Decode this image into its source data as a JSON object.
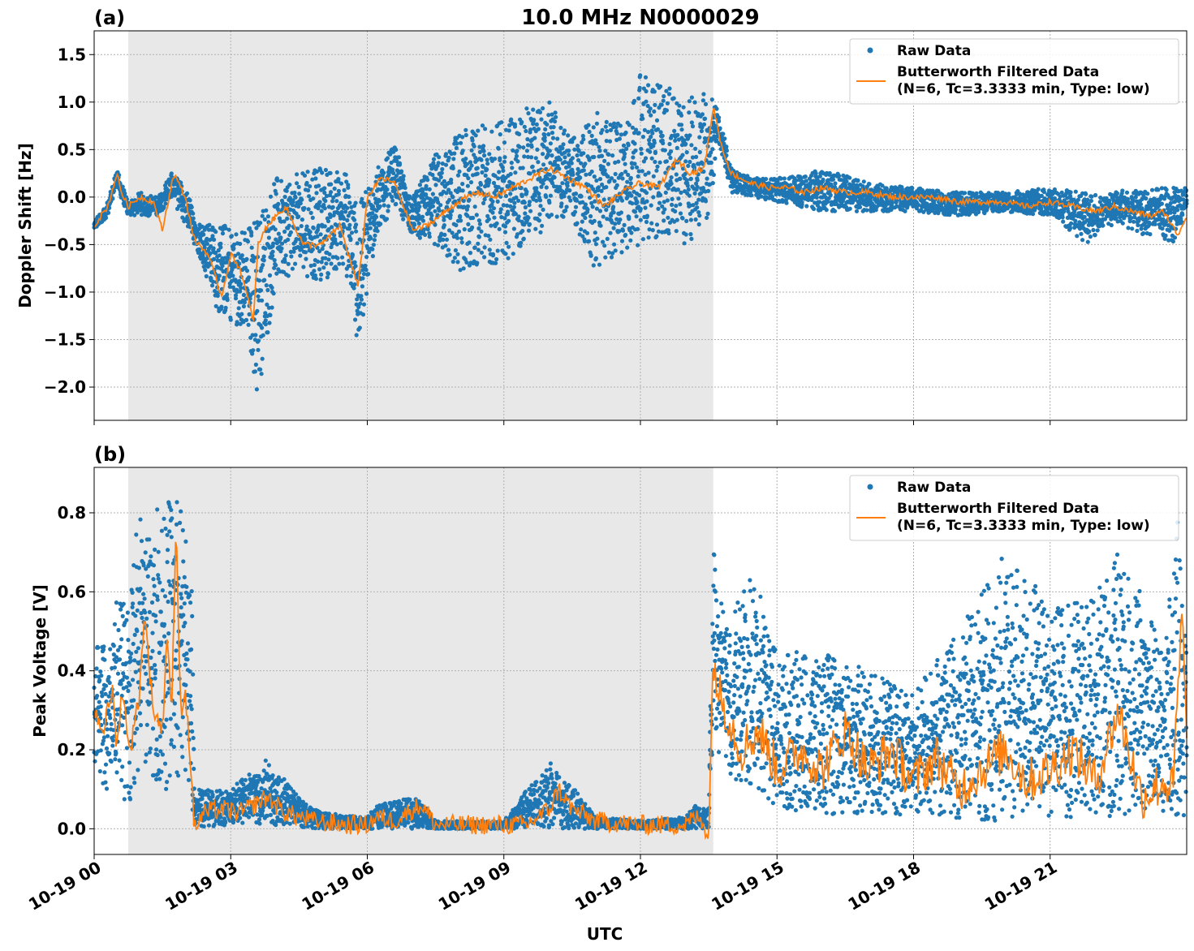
{
  "chart_data": [
    {
      "type": "scatter",
      "panel_label": "(a)",
      "title": "10.0 MHz N0000029",
      "xlabel": "",
      "ylabel": "Doppler Shift [Hz]",
      "xlim_hours": [
        0,
        24
      ],
      "ylim": [
        -2.35,
        1.75
      ],
      "yticks": [
        1.5,
        1.0,
        0.5,
        0.0,
        -0.5,
        -1.0,
        -1.5,
        -2.0
      ],
      "ytick_labels": [
        "1.5",
        "1.0",
        "0.5",
        "0.0",
        "−0.5",
        "−1.0",
        "−1.5",
        "−2.0"
      ],
      "grid": true,
      "legend_placement": "top-right",
      "shaded_span_hours": [
        0.75,
        13.6
      ],
      "shade_color": "#e8e8e8",
      "series": [
        {
          "name": "Raw Data",
          "kind": "points",
          "color": "#1f77b4",
          "envelope": {
            "x": [
              0,
              0.3,
              0.5,
              0.75,
              1.0,
              1.4,
              1.7,
              2.0,
              2.3,
              2.7,
              3.0,
              3.3,
              3.6,
              4.0,
              4.5,
              5.0,
              5.5,
              5.8,
              6.2,
              6.6,
              7.0,
              7.5,
              8.0,
              8.5,
              9.0,
              9.5,
              10.0,
              10.5,
              11.0,
              11.5,
              12.0,
              12.5,
              13.0,
              13.5,
              13.7,
              14.0,
              14.5,
              15.0,
              15.5,
              16.0,
              17.0,
              18.0,
              19.0,
              20.0,
              21.0,
              21.8,
              22.2,
              22.6,
              23.0,
              23.4,
              23.7,
              24.0
            ],
            "upper": [
              -0.25,
              -0.05,
              0.3,
              -0.05,
              0.05,
              0.0,
              0.28,
              0.1,
              -0.25,
              -0.3,
              -0.25,
              -0.35,
              -0.15,
              0.2,
              0.25,
              0.35,
              0.3,
              -0.1,
              0.3,
              0.55,
              0.0,
              0.45,
              0.7,
              0.75,
              0.8,
              0.95,
              1.0,
              0.6,
              0.9,
              0.8,
              1.3,
              1.2,
              1.0,
              1.2,
              0.95,
              0.3,
              0.2,
              0.2,
              0.22,
              0.3,
              0.15,
              0.1,
              0.05,
              0.05,
              0.1,
              0.05,
              0.0,
              0.1,
              0.05,
              0.1,
              0.1,
              0.1
            ],
            "lower": [
              -0.35,
              -0.2,
              0.1,
              -0.2,
              -0.2,
              -0.2,
              0.0,
              -0.3,
              -0.6,
              -1.2,
              -1.3,
              -1.4,
              -2.1,
              -0.9,
              -0.8,
              -0.9,
              -0.7,
              -1.6,
              -0.4,
              -0.1,
              -0.4,
              -0.5,
              -0.8,
              -0.7,
              -0.7,
              -0.5,
              -0.3,
              -0.2,
              -0.8,
              -0.6,
              -0.5,
              -0.4,
              -0.5,
              -0.3,
              0.6,
              0.05,
              0.0,
              -0.05,
              -0.1,
              -0.15,
              -0.15,
              -0.15,
              -0.2,
              -0.15,
              -0.2,
              -0.5,
              -0.3,
              -0.3,
              -0.4,
              -0.4,
              -0.5,
              -0.2
            ]
          }
        },
        {
          "name": "Butterworth Filtered Data\n(N=6, Tc=3.3333 min, Type: low)",
          "name_lines": [
            "Butterworth Filtered Data",
            "(N=6, Tc=3.3333 min, Type: low)"
          ],
          "kind": "line",
          "color": "#ff7f0e",
          "x": [
            0,
            0.3,
            0.5,
            0.6,
            0.75,
            1.0,
            1.3,
            1.5,
            1.75,
            2.0,
            2.2,
            2.5,
            2.8,
            3.0,
            3.2,
            3.5,
            3.6,
            3.8,
            4.2,
            4.6,
            5.0,
            5.4,
            5.8,
            6.0,
            6.3,
            6.6,
            7.0,
            7.3,
            7.6,
            8.0,
            8.4,
            8.8,
            9.2,
            9.6,
            10.0,
            10.4,
            10.8,
            11.2,
            11.6,
            12.0,
            12.4,
            12.8,
            13.1,
            13.4,
            13.6,
            13.8,
            14.0,
            14.4,
            14.8,
            15.2,
            15.6,
            16.0,
            16.5,
            17.0,
            17.5,
            18.0,
            18.5,
            19.0,
            19.5,
            20.0,
            20.5,
            21.0,
            21.5,
            22.0,
            22.4,
            22.8,
            23.2,
            23.5,
            23.8,
            24.0
          ],
          "y": [
            -0.3,
            -0.1,
            0.25,
            0.05,
            -0.1,
            0.0,
            -0.05,
            -0.35,
            0.25,
            0.0,
            -0.45,
            -0.6,
            -1.05,
            -0.6,
            -0.75,
            -1.3,
            -0.5,
            -0.3,
            -0.1,
            -0.5,
            -0.5,
            -0.3,
            -0.95,
            0.0,
            0.2,
            0.15,
            -0.35,
            -0.3,
            -0.2,
            -0.05,
            0.05,
            0.0,
            0.1,
            0.2,
            0.3,
            0.2,
            0.1,
            -0.1,
            0.05,
            0.15,
            0.1,
            0.4,
            0.25,
            0.3,
            0.95,
            0.5,
            0.25,
            0.15,
            0.1,
            0.1,
            0.05,
            0.1,
            0.05,
            0.05,
            0.0,
            0.0,
            0.0,
            -0.05,
            -0.05,
            -0.05,
            -0.1,
            -0.05,
            -0.1,
            -0.15,
            -0.1,
            -0.15,
            -0.2,
            -0.15,
            -0.4,
            -0.2
          ]
        }
      ]
    },
    {
      "type": "scatter",
      "panel_label": "(b)",
      "title": "",
      "xlabel": "UTC",
      "ylabel": "Peak Voltage [V]",
      "xlim_hours": [
        0,
        24
      ],
      "ylim": [
        -0.065,
        0.915
      ],
      "yticks": [
        0.8,
        0.6,
        0.4,
        0.2,
        0.0
      ],
      "ytick_labels": [
        "0.8",
        "0.6",
        "0.4",
        "0.2",
        "0.0"
      ],
      "xticks_hours": [
        0,
        3,
        6,
        9,
        12,
        15,
        18,
        21
      ],
      "xtick_labels": [
        "10-19 00",
        "10-19 03",
        "10-19 06",
        "10-19 09",
        "10-19 12",
        "10-19 15",
        "10-19 18",
        "10-19 21"
      ],
      "grid": true,
      "legend_placement": "top-right",
      "shaded_span_hours": [
        0.75,
        13.6
      ],
      "shade_color": "#e8e8e8",
      "series": [
        {
          "name": "Raw Data",
          "kind": "points",
          "color": "#1f77b4",
          "envelope": {
            "x": [
              0,
              0.3,
              0.5,
              0.75,
              1.0,
              1.2,
              1.5,
              1.75,
              2.0,
              2.15,
              2.2,
              3.0,
              3.8,
              4.5,
              5.0,
              6.0,
              6.2,
              7.0,
              7.2,
              7.5,
              9.0,
              9.5,
              10.0,
              10.3,
              10.6,
              11.0,
              12.0,
              13.0,
              13.2,
              13.5,
              13.6,
              13.7,
              14.0,
              14.5,
              15.0,
              16.0,
              17.0,
              18.0,
              19.0,
              20.0,
              20.5,
              21.0,
              22.0,
              22.5,
              23.0,
              23.5,
              23.8,
              24.0
            ],
            "upper": [
              0.5,
              0.45,
              0.6,
              0.55,
              0.85,
              0.75,
              0.85,
              0.85,
              0.8,
              0.6,
              0.1,
              0.1,
              0.18,
              0.08,
              0.04,
              0.03,
              0.06,
              0.08,
              0.07,
              0.02,
              0.02,
              0.1,
              0.18,
              0.12,
              0.1,
              0.03,
              0.02,
              0.03,
              0.06,
              0.05,
              0.75,
              0.6,
              0.55,
              0.65,
              0.45,
              0.45,
              0.4,
              0.35,
              0.5,
              0.7,
              0.65,
              0.55,
              0.6,
              0.7,
              0.6,
              0.45,
              0.8,
              0.45
            ],
            "lower": [
              0.1,
              0.1,
              0.1,
              0.05,
              0.15,
              0.15,
              0.1,
              0.1,
              0.1,
              0.05,
              0.0,
              0.01,
              0.01,
              0.005,
              0.0,
              0.0,
              0.0,
              0.0,
              0.0,
              0.0,
              0.0,
              0.0,
              0.0,
              0.0,
              0.0,
              0.0,
              0.0,
              0.0,
              0.0,
              0.0,
              0.25,
              0.2,
              0.12,
              0.1,
              0.05,
              0.03,
              0.03,
              0.03,
              0.02,
              0.02,
              0.02,
              0.03,
              0.03,
              0.03,
              0.03,
              0.03,
              0.03,
              0.03
            ]
          }
        },
        {
          "name": "Butterworth Filtered Data\n(N=6, Tc=3.3333 min, Type: low)",
          "name_lines": [
            "Butterworth Filtered Data",
            "(N=6, Tc=3.3333 min, Type: low)"
          ],
          "kind": "line",
          "color": "#ff7f0e",
          "x": [
            0,
            0.2,
            0.4,
            0.5,
            0.6,
            0.8,
            1.0,
            1.1,
            1.3,
            1.5,
            1.6,
            1.7,
            1.8,
            1.9,
            2.0,
            2.1,
            2.2,
            2.4,
            2.8,
            3.2,
            3.8,
            4.2,
            4.8,
            5.5,
            6.0,
            6.2,
            6.6,
            7.0,
            7.2,
            7.5,
            8.0,
            9.0,
            9.5,
            10.0,
            10.2,
            10.5,
            11.0,
            12.0,
            12.5,
            13.0,
            13.2,
            13.4,
            13.5,
            13.6,
            13.7,
            13.9,
            14.2,
            14.6,
            15.0,
            15.5,
            16.0,
            16.5,
            17.0,
            17.5,
            18.0,
            18.5,
            19.0,
            19.5,
            20.0,
            20.5,
            21.0,
            21.5,
            22.0,
            22.5,
            23.0,
            23.5,
            23.7,
            23.9,
            24.0
          ],
          "y": [
            0.3,
            0.25,
            0.35,
            0.2,
            0.35,
            0.2,
            0.35,
            0.55,
            0.3,
            0.25,
            0.5,
            0.3,
            0.76,
            0.3,
            0.35,
            0.2,
            0.0,
            0.04,
            0.05,
            0.04,
            0.08,
            0.04,
            0.02,
            0.01,
            0.01,
            0.03,
            0.02,
            0.05,
            0.06,
            0.01,
            0.01,
            0.01,
            0.01,
            0.05,
            0.1,
            0.05,
            0.02,
            0.01,
            0.01,
            0.01,
            0.03,
            0.01,
            -0.02,
            0.45,
            0.35,
            0.3,
            0.2,
            0.25,
            0.15,
            0.2,
            0.15,
            0.25,
            0.15,
            0.2,
            0.12,
            0.18,
            0.1,
            0.15,
            0.2,
            0.12,
            0.15,
            0.2,
            0.12,
            0.3,
            0.08,
            0.12,
            0.1,
            0.55,
            0.2
          ]
        }
      ]
    }
  ]
}
